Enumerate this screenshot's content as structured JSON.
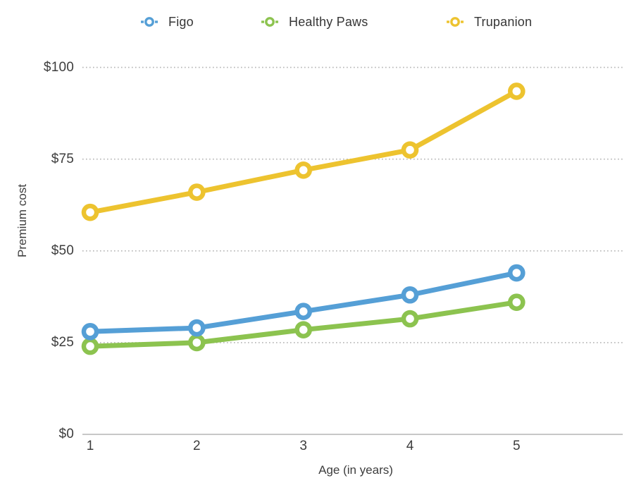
{
  "chart_data": {
    "type": "line",
    "title": "",
    "xlabel": "Age (in years)",
    "ylabel": "Premium cost",
    "x": [
      1,
      2,
      3,
      4,
      5
    ],
    "x_tick_labels": [
      "1",
      "2",
      "3",
      "4",
      "5"
    ],
    "y_ticks": [
      0,
      25,
      50,
      75,
      100
    ],
    "y_tick_labels": [
      "$0",
      "$25",
      "$50",
      "$75",
      "$100"
    ],
    "ylim": [
      0,
      100
    ],
    "grid": "horizontal-dotted",
    "legend_position": "top",
    "marker_style": "open-circle",
    "series": [
      {
        "name": "Figo",
        "color": "#559fd6",
        "values": [
          28,
          29,
          33.5,
          38,
          44
        ]
      },
      {
        "name": "Healthy Paws",
        "color": "#8cc34f",
        "values": [
          24,
          25,
          28.5,
          31.5,
          36
        ]
      },
      {
        "name": "Trupanion",
        "color": "#edc32f",
        "values": [
          60.5,
          66,
          72,
          77.5,
          93.5
        ]
      }
    ],
    "style_colors": {
      "gridline": "#b3b3b3",
      "axis_line": "#c7c7c7",
      "text": "#3d3d3d"
    }
  }
}
